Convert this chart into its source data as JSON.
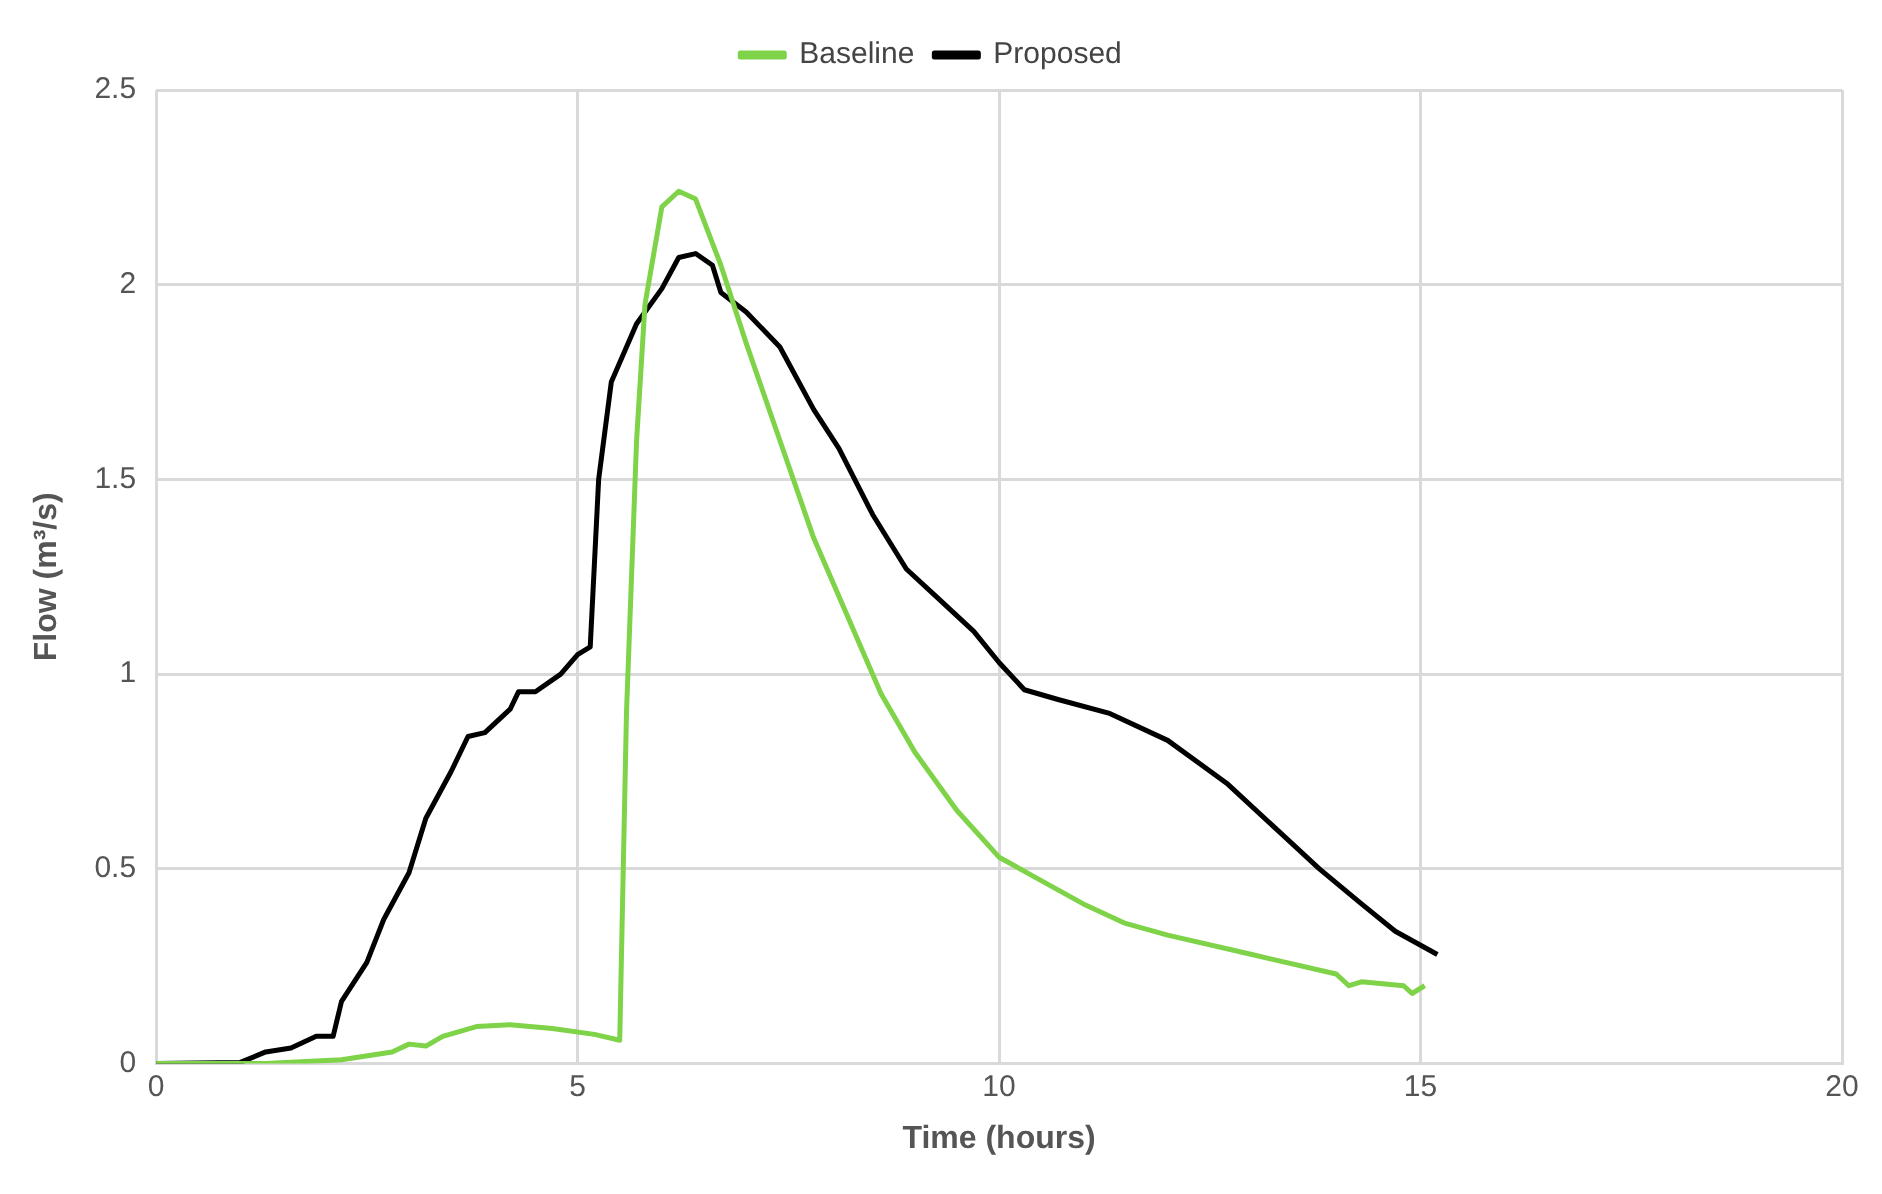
{
  "chart_data": {
    "type": "line",
    "xlabel": "Time (hours)",
    "ylabel": "Flow (m³/s)",
    "xlim": [
      0,
      20
    ],
    "xticks": [
      0,
      5,
      10,
      15,
      20
    ],
    "ylim": [
      0,
      2.5
    ],
    "yticks": [
      0,
      0.5,
      1,
      1.5,
      2,
      2.5
    ],
    "grid": true,
    "legend": "top",
    "marker": "none",
    "line_style": "solid",
    "series": [
      {
        "name": "Baseline",
        "color": "#7ed348",
        "x": [
          0,
          1,
          1.3,
          2.2,
          2.8,
          3,
          3.2,
          3.4,
          3.8,
          4.2,
          4.7,
          5.2,
          5.5,
          5.58,
          5.7,
          5.8,
          6,
          6.2,
          6.4,
          6.7,
          7,
          7.4,
          7.8,
          8.2,
          8.6,
          9,
          9.5,
          10,
          10.5,
          11,
          11.5,
          12,
          13,
          14,
          14.15,
          14.3,
          14.8,
          14.9,
          15.05
        ],
        "values": [
          0,
          0,
          0,
          0.01,
          0.03,
          0.05,
          0.045,
          0.07,
          0.095,
          0.1,
          0.09,
          0.075,
          0.06,
          0.9,
          1.6,
          1.95,
          2.2,
          2.24,
          2.22,
          2.05,
          1.85,
          1.6,
          1.35,
          1.15,
          0.95,
          0.8,
          0.65,
          0.53,
          0.47,
          0.41,
          0.36,
          0.33,
          0.28,
          0.23,
          0.2,
          0.21,
          0.2,
          0.18,
          0.2
        ]
      },
      {
        "name": "Proposed",
        "color": "#000000",
        "x": [
          0,
          1,
          1.3,
          1.6,
          1.9,
          2.1,
          2.2,
          2.5,
          2.7,
          3,
          3.2,
          3.5,
          3.7,
          3.9,
          4.2,
          4.3,
          4.5,
          4.8,
          5,
          5.15,
          5.25,
          5.4,
          5.7,
          6,
          6.2,
          6.4,
          6.6,
          6.7,
          7,
          7.4,
          7.8,
          8.1,
          8.5,
          8.9,
          9.3,
          9.7,
          10,
          10.3,
          10.7,
          11.3,
          12,
          12.7,
          13.3,
          13.8,
          14.3,
          14.7,
          15.2
        ],
        "values": [
          0,
          0.003,
          0.03,
          0.04,
          0.07,
          0.07,
          0.16,
          0.26,
          0.37,
          0.49,
          0.63,
          0.75,
          0.84,
          0.85,
          0.91,
          0.955,
          0.955,
          1,
          1.05,
          1.07,
          1.5,
          1.75,
          1.9,
          1.99,
          2.07,
          2.08,
          2.05,
          1.98,
          1.93,
          1.84,
          1.68,
          1.58,
          1.41,
          1.27,
          1.19,
          1.11,
          1.03,
          0.96,
          0.935,
          0.9,
          0.83,
          0.72,
          0.6,
          0.5,
          0.41,
          0.34,
          0.28
        ]
      }
    ]
  }
}
